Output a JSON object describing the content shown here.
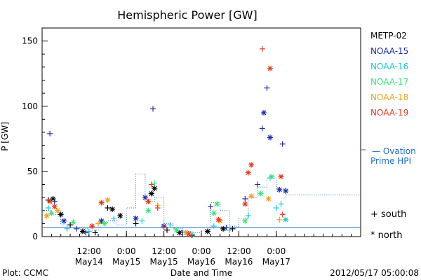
{
  "chart_data": {
    "type": "scatter",
    "title": "Hemispheric Power [GW]",
    "xlabel": "Date and Time",
    "ylabel": "P [GW]",
    "xlim": [
      "2012-05-13 21:00",
      "2012-05-18 03:00"
    ],
    "ylim": [
      0,
      160
    ],
    "grid": false,
    "x_ticks": [
      {
        "t": "2012-05-14 12:00",
        "time": "12:00",
        "date": "May14"
      },
      {
        "t": "2012-05-15 00:00",
        "time": "0:00",
        "date": "May15"
      },
      {
        "t": "2012-05-15 12:00",
        "time": "12:00",
        "date": "May15"
      },
      {
        "t": "2012-05-16 00:00",
        "time": "0:00",
        "date": "May16"
      },
      {
        "t": "2012-05-16 12:00",
        "time": "12:00",
        "date": "May16"
      },
      {
        "t": "2012-05-17 00:00",
        "time": "0:00",
        "date": "May17"
      }
    ],
    "y_ticks": [
      0,
      50,
      100,
      150
    ],
    "legend_placement": "right",
    "series": [
      {
        "name": "METP-02",
        "color": "#000000",
        "points": [
          [
            "2012-05-13 23:00",
            28,
            "+"
          ],
          [
            "2012-05-14 00:30",
            29,
            "*"
          ],
          [
            "2012-05-14 03:00",
            17,
            "*"
          ],
          [
            "2012-05-14 06:00",
            9,
            "+"
          ],
          [
            "2012-05-14 10:00",
            4,
            "*"
          ],
          [
            "2012-05-14 14:00",
            3,
            "+"
          ],
          [
            "2012-05-14 18:00",
            22,
            "+"
          ],
          [
            "2012-05-14 19:30",
            21,
            "*"
          ],
          [
            "2012-05-14 22:00",
            16,
            "*"
          ],
          [
            "2012-05-15 03:00",
            10,
            "+"
          ],
          [
            "2012-05-15 08:00",
            33,
            "*"
          ],
          [
            "2012-05-15 09:00",
            37,
            "*"
          ],
          [
            "2012-05-15 13:00",
            5,
            "+"
          ],
          [
            "2012-05-15 17:00",
            3,
            "*"
          ],
          [
            "2012-05-15 21:00",
            1,
            "+"
          ],
          [
            "2012-05-16 02:00",
            4,
            "*"
          ],
          [
            "2012-05-16 07:00",
            6,
            "*"
          ],
          [
            "2012-05-16 10:00",
            6,
            "+"
          ]
        ]
      },
      {
        "name": "NOAA-15",
        "color": "#1c2ea6",
        "points": [
          [
            "2012-05-13 23:30",
            79,
            "+"
          ],
          [
            "2012-05-14 01:00",
            27,
            "+"
          ],
          [
            "2012-05-14 04:00",
            12,
            "*"
          ],
          [
            "2012-05-14 08:00",
            6,
            "+"
          ],
          [
            "2012-05-14 11:00",
            3,
            "+"
          ],
          [
            "2012-05-14 16:00",
            12,
            "*"
          ],
          [
            "2012-05-15 03:00",
            14,
            "*"
          ],
          [
            "2012-05-15 06:00",
            30,
            "*"
          ],
          [
            "2012-05-15 08:30",
            98,
            "+"
          ],
          [
            "2012-05-15 12:00",
            8,
            "*"
          ],
          [
            "2012-05-15 18:00",
            3,
            "+"
          ],
          [
            "2012-05-16 03:00",
            23,
            "+"
          ],
          [
            "2012-05-16 08:00",
            7,
            "+"
          ],
          [
            "2012-05-16 14:00",
            29,
            "+"
          ],
          [
            "2012-05-16 18:00",
            40,
            "+"
          ],
          [
            "2012-05-16 19:30",
            83,
            "+"
          ],
          [
            "2012-05-16 20:00",
            95,
            "*"
          ],
          [
            "2012-05-16 21:00",
            114,
            "+"
          ],
          [
            "2012-05-16 22:00",
            76,
            "*"
          ],
          [
            "2012-05-17 01:00",
            36,
            "*"
          ],
          [
            "2012-05-17 02:00",
            71,
            "+"
          ],
          [
            "2012-05-17 03:00",
            35,
            "*"
          ]
        ]
      },
      {
        "name": "NOAA-16",
        "color": "#22c4d8",
        "points": [
          [
            "2012-05-13 23:00",
            22,
            "+"
          ],
          [
            "2012-05-14 05:00",
            6,
            "+"
          ],
          [
            "2012-05-14 12:00",
            4,
            "+"
          ],
          [
            "2012-05-14 20:00",
            14,
            "+"
          ],
          [
            "2012-05-15 05:00",
            12,
            "+"
          ],
          [
            "2012-05-15 14:00",
            9,
            "+"
          ],
          [
            "2012-05-15 21:00",
            2,
            "+"
          ],
          [
            "2012-05-16 04:00",
            8,
            "+"
          ],
          [
            "2012-05-16 09:00",
            5,
            "+"
          ],
          [
            "2012-05-16 15:00",
            16,
            "+"
          ],
          [
            "2012-05-16 22:00",
            45,
            "+"
          ],
          [
            "2012-05-17 00:00",
            22,
            "+"
          ],
          [
            "2012-05-17 01:30",
            25,
            "+"
          ],
          [
            "2012-05-17 03:00",
            13,
            "*"
          ]
        ]
      },
      {
        "name": "NOAA-17",
        "color": "#3ee27a",
        "points": [
          [
            "2012-05-14 00:00",
            18,
            "*"
          ],
          [
            "2012-05-14 07:00",
            11,
            "*"
          ],
          [
            "2012-05-14 17:00",
            10,
            "*"
          ],
          [
            "2012-05-15 07:00",
            20,
            "*"
          ],
          [
            "2012-05-15 09:00",
            41,
            "+"
          ],
          [
            "2012-05-15 16:00",
            5,
            "*"
          ],
          [
            "2012-05-16 04:00",
            18,
            "*"
          ],
          [
            "2012-05-16 05:00",
            25,
            "*"
          ],
          [
            "2012-05-16 14:00",
            12,
            "*"
          ],
          [
            "2012-05-16 19:00",
            33,
            "*"
          ],
          [
            "2012-05-16 22:30",
            46,
            "*"
          ]
        ]
      },
      {
        "name": "NOAA-18",
        "color": "#f0a020",
        "points": [
          [
            "2012-05-13 22:30",
            16,
            "*"
          ],
          [
            "2012-05-14 02:00",
            20,
            "*"
          ],
          [
            "2012-05-14 15:00",
            10,
            "+"
          ],
          [
            "2012-05-14 18:00",
            28,
            "*"
          ],
          [
            "2012-05-15 10:00",
            24,
            "+"
          ],
          [
            "2012-05-15 19:00",
            3,
            "*"
          ],
          [
            "2012-05-16 06:00",
            12,
            "*"
          ],
          [
            "2012-05-16 16:00",
            31,
            "*"
          ],
          [
            "2012-05-16 21:30",
            29,
            "*"
          ],
          [
            "2012-05-17 01:00",
            13,
            "+"
          ]
        ]
      },
      {
        "name": "NOAA-19",
        "color": "#e03a1c",
        "points": [
          [
            "2012-05-13 23:30",
            27,
            "*"
          ],
          [
            "2012-05-14 01:00",
            23,
            "*"
          ],
          [
            "2012-05-14 13:00",
            8,
            "*"
          ],
          [
            "2012-05-14 16:00",
            26,
            "*"
          ],
          [
            "2012-05-15 07:00",
            27,
            "*"
          ],
          [
            "2012-05-15 08:00",
            40,
            "+"
          ],
          [
            "2012-05-15 10:00",
            22,
            "+"
          ],
          [
            "2012-05-15 12:00",
            7,
            "+"
          ],
          [
            "2012-05-15 20:00",
            2,
            "*"
          ],
          [
            "2012-05-16 05:30",
            13,
            "*"
          ],
          [
            "2012-05-16 14:00",
            25,
            "*"
          ],
          [
            "2012-05-16 15:00",
            49,
            "*"
          ],
          [
            "2012-05-16 16:00",
            55,
            "*"
          ],
          [
            "2012-05-16 19:30",
            144,
            "+"
          ],
          [
            "2012-05-16 22:00",
            129,
            "*"
          ],
          [
            "2012-05-17 01:30",
            46,
            "*"
          ],
          [
            "2012-05-17 02:00",
            17,
            "+"
          ]
        ]
      }
    ],
    "reference_line": {
      "name": "— Ovation Prime HPI",
      "color": "#1c6ac8",
      "points": [
        [
          "2012-05-13 21:00",
          20
        ],
        [
          "2012-05-14 00:00",
          17
        ],
        [
          "2012-05-14 03:00",
          9
        ],
        [
          "2012-05-14 06:00",
          7
        ],
        [
          "2012-05-14 09:00",
          6
        ],
        [
          "2012-05-14 12:00",
          5
        ],
        [
          "2012-05-14 15:00",
          10
        ],
        [
          "2012-05-14 18:00",
          12
        ],
        [
          "2012-05-14 21:00",
          9
        ],
        [
          "2012-05-15 00:00",
          22
        ],
        [
          "2012-05-15 03:00",
          48
        ],
        [
          "2012-05-15 06:00",
          27
        ],
        [
          "2012-05-15 09:00",
          30
        ],
        [
          "2012-05-15 12:00",
          10
        ],
        [
          "2012-05-15 15:00",
          6
        ],
        [
          "2012-05-15 18:00",
          4
        ],
        [
          "2012-05-15 21:00",
          3
        ],
        [
          "2012-05-16 00:00",
          5
        ],
        [
          "2012-05-16 03:00",
          26
        ],
        [
          "2012-05-16 06:00",
          20
        ],
        [
          "2012-05-16 09:00",
          8
        ],
        [
          "2012-05-16 12:00",
          14
        ],
        [
          "2012-05-16 15:00",
          30
        ],
        [
          "2012-05-16 18:00",
          38
        ],
        [
          "2012-05-16 21:00",
          45
        ],
        [
          "2012-05-17 00:00",
          37
        ],
        [
          "2012-05-17 03:00",
          32
        ]
      ]
    },
    "baseline_value": 7,
    "marker_legend": [
      {
        "symbol": "+",
        "label": "south"
      },
      {
        "symbol": "*",
        "label": "north"
      }
    ]
  },
  "footer": {
    "plot_credit": "Plot: CCMC",
    "timestamp": "2012/05/17 05:00:08"
  }
}
